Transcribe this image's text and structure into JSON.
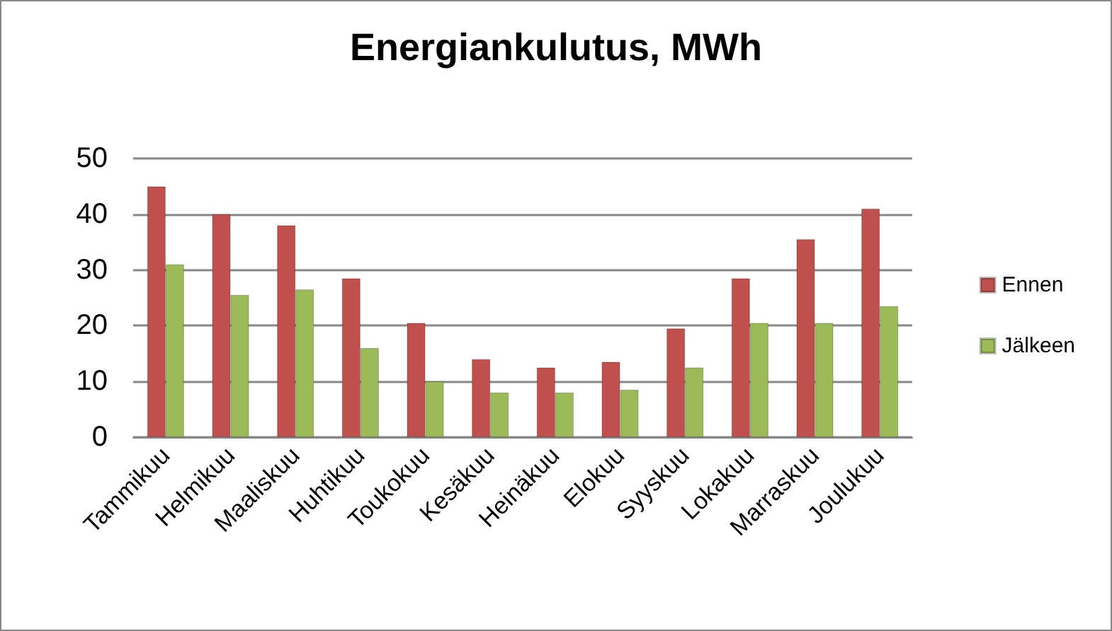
{
  "chart_data": {
    "type": "bar",
    "title": "Energiankulutus, MWh",
    "categories": [
      "Tammikuu",
      "Helmikuu",
      "Maaliskuu",
      "Huhtikuu",
      "Toukokuu",
      "Kesäkuu",
      "Heinäkuu",
      "Elokuu",
      "Syyskuu",
      "Lokakuu",
      "Marraskuu",
      "Joulukuu"
    ],
    "series": [
      {
        "name": "Ennen",
        "color": "#c0504d",
        "values": [
          45,
          40,
          38,
          28.5,
          20.5,
          14,
          12.5,
          13.5,
          19.5,
          28.5,
          35.5,
          41
        ]
      },
      {
        "name": "Jälkeen",
        "color": "#9bbb59",
        "values": [
          31,
          25.5,
          26.5,
          16,
          10,
          8,
          8,
          8.5,
          12.5,
          20.5,
          20.5,
          23.5
        ]
      }
    ],
    "ylim": [
      0,
      50
    ],
    "yticks": [
      0,
      10,
      20,
      30,
      40,
      50
    ],
    "grid": "y",
    "legend": "right"
  }
}
